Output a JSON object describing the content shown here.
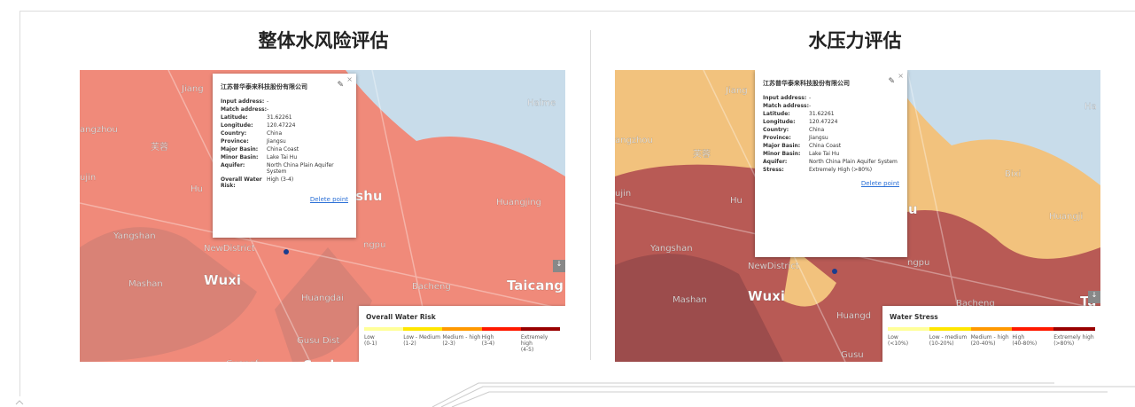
{
  "panels": [
    {
      "title": "整体水风险评估",
      "map_labels": [
        "Jiang",
        "Haime",
        "angzhou",
        "芙蓉",
        "ujin",
        "Hu",
        "Changshu",
        "Huangjing",
        "Yangshan",
        "NewDistrict",
        "ngpu",
        "Mashan",
        "Wuxi",
        "Huangdai",
        "Bacheng",
        "Taicang",
        "Gusu Dist",
        "Guangfu",
        "Suzhou"
      ],
      "popup": {
        "company": "江苏普华泰来科技股份有限公司",
        "fields": [
          {
            "label": "Input address:",
            "value": "-"
          },
          {
            "label": "Match address:",
            "value": "-"
          },
          {
            "label": "Latitude:",
            "value": "31.62261"
          },
          {
            "label": "Longitude:",
            "value": "120.47224"
          },
          {
            "label": "Country:",
            "value": "China"
          },
          {
            "label": "Province:",
            "value": "Jiangsu"
          },
          {
            "label": "Major Basin:",
            "value": "China Coast"
          },
          {
            "label": "Minor Basin:",
            "value": "Lake Tai Hu"
          },
          {
            "label": "Aquifer:",
            "value": "North China Plain Aquifer System"
          },
          {
            "label": "Overall Water Risk:",
            "value": "High (3-4)"
          }
        ],
        "delete": "Delete point"
      },
      "legend": {
        "title": "Overall Water Risk",
        "items": [
          {
            "name": "Low",
            "range": "(0-1)",
            "color": "#ffff99"
          },
          {
            "name": "Low - Medium",
            "range": "(1-2)",
            "color": "#ffe600"
          },
          {
            "name": "Medium - high",
            "range": "(2-3)",
            "color": "#ff9900"
          },
          {
            "name": "High",
            "range": "(3-4)",
            "color": "#ff1900"
          },
          {
            "name": "Extremely high",
            "range": "(4-5)",
            "color": "#990000"
          }
        ]
      }
    },
    {
      "title": "水压力评估",
      "map_labels": [
        "Jiang",
        "Ha",
        "angzhou",
        "芙蓉",
        "Bixi",
        "ujin",
        "Hu",
        "Changshu",
        "Huangji",
        "Yangshan",
        "NewDistrict",
        "ngpu",
        "Mashan",
        "Wuxi",
        "Huangd",
        "Bacheng",
        "Ta",
        "Gusu"
      ],
      "popup": {
        "company": "江苏普华泰来科技股份有限公司",
        "fields": [
          {
            "label": "Input address:",
            "value": "-"
          },
          {
            "label": "Match address:",
            "value": "-"
          },
          {
            "label": "Latitude:",
            "value": "31.62261"
          },
          {
            "label": "Longitude:",
            "value": "120.47224"
          },
          {
            "label": "Country:",
            "value": "China"
          },
          {
            "label": "Province:",
            "value": "Jiangsu"
          },
          {
            "label": "Major Basin:",
            "value": "China Coast"
          },
          {
            "label": "Minor Basin:",
            "value": "Lake Tai Hu"
          },
          {
            "label": "Aquifer:",
            "value": "North China Plain Aquifer System"
          },
          {
            "label": "Stress:",
            "value": "Extremely High (>80%)"
          }
        ],
        "delete": "Delete point"
      },
      "legend": {
        "title": "Water Stress",
        "items": [
          {
            "name": "Low",
            "range": "(<10%)",
            "color": "#ffff99"
          },
          {
            "name": "Low - medium",
            "range": "(10-20%)",
            "color": "#ffe600"
          },
          {
            "name": "Medium - high",
            "range": "(20-40%)",
            "color": "#ff9900"
          },
          {
            "name": "High",
            "range": "(40-80%)",
            "color": "#ff1900"
          },
          {
            "name": "Extremely high",
            "range": "(>80%)",
            "color": "#990000"
          }
        ]
      }
    }
  ]
}
